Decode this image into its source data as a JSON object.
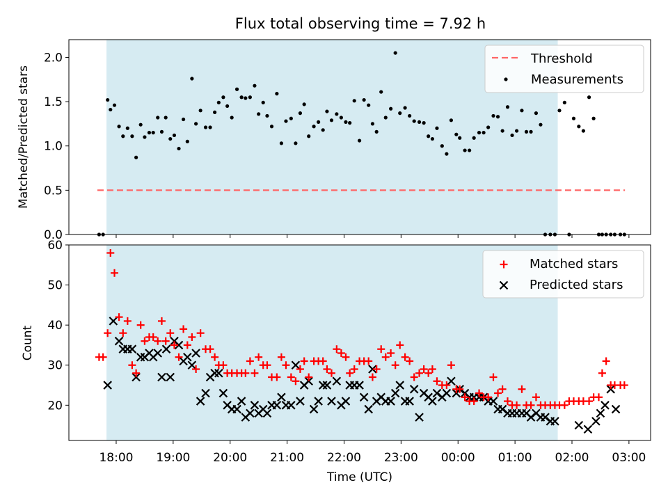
{
  "figure_title": "Flux total observing time = 7.92 h",
  "colors": {
    "observing_window": "#add8e6",
    "threshold": "#ff6666",
    "measurements": "#000000",
    "matched": "#ff0000",
    "predicted": "#000000"
  },
  "chart_data": [
    {
      "type": "scatter",
      "panel": "top",
      "title": "Flux total observing time = 7.92 h",
      "xlabel": "",
      "ylabel": "Matched/Predicted stars",
      "ylim": [
        0,
        2.2
      ],
      "yticks": [
        "0.0",
        "0.5",
        "1.0",
        "1.5",
        "2.0"
      ],
      "xticks": [
        "18:00",
        "19:00",
        "20:00",
        "21:00",
        "22:00",
        "23:00",
        "00:00",
        "01:00",
        "02:00",
        "03:00"
      ],
      "xlim_hours": [
        17.17,
        27.38
      ],
      "shaded_window_hours": [
        17.83,
        25.75
      ],
      "legend_position": "upper right",
      "threshold": {
        "name": "Threshold",
        "value": 0.5,
        "x_range_hours": [
          17.67,
          26.93
        ]
      },
      "series": [
        {
          "name": "Measurements",
          "x_hours": [
            17.7,
            17.77,
            17.85,
            17.9,
            17.97,
            18.05,
            18.12,
            18.2,
            18.28,
            18.35,
            18.43,
            18.5,
            18.58,
            18.65,
            18.73,
            18.8,
            18.87,
            18.95,
            19.02,
            19.1,
            19.18,
            19.25,
            19.33,
            19.4,
            19.48,
            19.57,
            19.65,
            19.73,
            19.8,
            19.88,
            19.95,
            20.03,
            20.12,
            20.2,
            20.27,
            20.35,
            20.43,
            20.5,
            20.58,
            20.65,
            20.73,
            20.82,
            20.9,
            20.98,
            21.07,
            21.15,
            21.23,
            21.3,
            21.38,
            21.47,
            21.55,
            21.63,
            21.7,
            21.78,
            21.87,
            21.95,
            22.03,
            22.1,
            22.18,
            22.27,
            22.35,
            22.43,
            22.5,
            22.57,
            22.65,
            22.73,
            22.82,
            22.9,
            22.98,
            23.07,
            23.15,
            23.23,
            23.32,
            23.4,
            23.48,
            23.55,
            23.63,
            23.72,
            23.8,
            23.88,
            23.97,
            24.03,
            24.12,
            24.2,
            24.28,
            24.37,
            24.45,
            24.53,
            24.62,
            24.7,
            24.78,
            24.87,
            24.95,
            25.03,
            25.12,
            25.2,
            25.28,
            25.37,
            25.45,
            25.53,
            25.62,
            25.7,
            25.78,
            25.87,
            25.95,
            26.03,
            26.12,
            26.2,
            26.3,
            26.38,
            26.47,
            26.53,
            26.6,
            26.68,
            26.75,
            26.85,
            26.92
          ],
          "values": [
            0.0,
            0.0,
            1.52,
            1.41,
            1.46,
            1.22,
            1.11,
            1.2,
            1.11,
            0.87,
            1.24,
            1.1,
            1.15,
            1.15,
            1.32,
            1.16,
            1.32,
            1.08,
            1.12,
            0.97,
            1.3,
            1.05,
            1.76,
            1.25,
            1.4,
            1.21,
            1.21,
            1.38,
            1.49,
            1.55,
            1.45,
            1.32,
            1.64,
            1.55,
            1.54,
            1.55,
            1.68,
            1.36,
            1.49,
            1.34,
            1.22,
            1.59,
            1.03,
            1.28,
            1.31,
            1.03,
            1.37,
            1.47,
            1.11,
            1.22,
            1.27,
            1.18,
            1.39,
            1.29,
            1.36,
            1.32,
            1.27,
            1.26,
            1.51,
            1.06,
            1.52,
            1.46,
            1.25,
            1.16,
            1.61,
            1.32,
            1.42,
            2.05,
            1.37,
            1.43,
            1.34,
            1.28,
            1.27,
            1.26,
            1.11,
            1.08,
            1.2,
            1.0,
            0.91,
            1.29,
            1.13,
            1.09,
            0.95,
            0.95,
            1.09,
            1.15,
            1.15,
            1.21,
            1.34,
            1.33,
            1.17,
            1.44,
            1.12,
            1.17,
            1.4,
            1.16,
            1.16,
            1.37,
            1.24,
            0.0,
            0.0,
            0.0,
            1.4,
            1.49,
            0.0,
            1.31,
            1.22,
            1.17,
            1.55,
            1.31,
            0.0,
            0.0,
            0.0,
            0.0,
            0.0,
            0.0,
            0.0
          ]
        }
      ]
    },
    {
      "type": "scatter",
      "panel": "bottom",
      "xlabel": "Time (UTC)",
      "ylabel": "Count",
      "ylim": [
        11.2,
        60
      ],
      "yticks": [
        "20",
        "30",
        "40",
        "50",
        "60"
      ],
      "xticks": [
        "18:00",
        "19:00",
        "20:00",
        "21:00",
        "22:00",
        "23:00",
        "00:00",
        "01:00",
        "02:00",
        "03:00"
      ],
      "xlim_hours": [
        17.17,
        27.38
      ],
      "shaded_window_hours": [
        17.83,
        25.75
      ],
      "legend_position": "upper right",
      "series": [
        {
          "name": "Matched stars",
          "marker": "plus",
          "x_hours": [
            17.7,
            17.77,
            17.85,
            17.9,
            17.97,
            18.05,
            18.12,
            18.2,
            18.28,
            18.35,
            18.43,
            18.5,
            18.58,
            18.65,
            18.73,
            18.8,
            18.87,
            18.95,
            19.02,
            19.1,
            19.18,
            19.25,
            19.33,
            19.4,
            19.48,
            19.57,
            19.65,
            19.73,
            19.8,
            19.88,
            19.95,
            20.03,
            20.12,
            20.2,
            20.27,
            20.35,
            20.43,
            20.5,
            20.58,
            20.65,
            20.73,
            20.82,
            20.9,
            20.98,
            21.07,
            21.15,
            21.23,
            21.3,
            21.38,
            21.47,
            21.55,
            21.63,
            21.7,
            21.78,
            21.87,
            21.95,
            22.03,
            22.1,
            22.18,
            22.27,
            22.35,
            22.43,
            22.5,
            22.57,
            22.65,
            22.73,
            22.82,
            22.9,
            22.98,
            23.07,
            23.15,
            23.23,
            23.32,
            23.4,
            23.48,
            23.55,
            23.63,
            23.72,
            23.8,
            23.88,
            23.97,
            24.03,
            24.12,
            24.2,
            24.28,
            24.37,
            24.45,
            24.53,
            24.62,
            24.7,
            24.78,
            24.87,
            24.95,
            25.03,
            25.12,
            25.2,
            25.28,
            25.37,
            25.45,
            25.53,
            25.62,
            25.7,
            25.78,
            25.87,
            25.95,
            26.03,
            26.12,
            26.2,
            26.3,
            26.38,
            26.47,
            26.53,
            26.6,
            26.68,
            26.75,
            26.85,
            26.92
          ],
          "values": [
            32,
            32,
            38,
            58,
            53,
            42,
            38,
            41,
            30,
            28,
            40,
            36,
            37,
            37,
            36,
            41,
            36,
            38,
            35,
            32,
            39,
            35,
            37,
            29,
            38,
            34,
            34,
            32,
            30,
            30,
            28,
            28,
            28,
            28,
            28,
            31,
            28,
            32,
            30,
            30,
            27,
            27,
            32,
            30,
            27,
            26,
            29,
            31,
            27,
            31,
            31,
            31,
            29,
            28,
            34,
            33,
            32,
            28,
            29,
            31,
            31,
            31,
            27,
            29,
            34,
            32,
            33,
            30,
            35,
            32,
            31,
            27,
            28,
            29,
            28,
            29,
            26,
            25,
            25,
            30,
            24,
            24,
            22,
            21,
            21,
            23,
            22,
            22,
            27,
            23,
            24,
            21,
            20,
            20,
            24,
            20,
            20,
            22,
            20,
            20,
            20,
            20,
            20,
            20,
            21,
            21,
            21,
            21,
            21,
            22,
            22,
            28,
            31,
            25,
            25,
            25,
            25
          ],
          "note": ""
        },
        {
          "name": "Predicted stars",
          "marker": "x",
          "x_hours": [
            17.85,
            17.95,
            18.05,
            18.12,
            18.2,
            18.28,
            18.35,
            18.43,
            18.5,
            18.58,
            18.65,
            18.73,
            18.8,
            18.88,
            18.95,
            19.02,
            19.1,
            19.18,
            19.25,
            19.33,
            19.4,
            19.48,
            19.57,
            19.65,
            19.73,
            19.8,
            19.88,
            19.95,
            20.03,
            20.12,
            20.2,
            20.27,
            20.35,
            20.43,
            20.5,
            20.58,
            20.65,
            20.73,
            20.82,
            20.9,
            20.98,
            21.07,
            21.15,
            21.23,
            21.3,
            21.38,
            21.47,
            21.55,
            21.63,
            21.7,
            21.78,
            21.87,
            21.95,
            22.03,
            22.1,
            22.18,
            22.27,
            22.35,
            22.43,
            22.5,
            22.57,
            22.65,
            22.73,
            22.82,
            22.9,
            22.98,
            23.07,
            23.15,
            23.23,
            23.32,
            23.4,
            23.48,
            23.55,
            23.63,
            23.72,
            23.8,
            23.88,
            23.97,
            24.03,
            24.12,
            24.2,
            24.28,
            24.37,
            24.45,
            24.53,
            24.62,
            24.7,
            24.78,
            24.87,
            24.95,
            25.03,
            25.12,
            25.2,
            25.28,
            25.37,
            25.45,
            25.53,
            25.62,
            25.7,
            26.12,
            26.28,
            26.42,
            26.5,
            26.58,
            26.68,
            26.77
          ],
          "values": [
            25,
            41,
            36,
            34,
            34,
            34,
            27,
            32,
            32,
            33,
            32,
            33,
            27,
            34,
            27,
            36,
            35,
            31,
            32,
            30,
            33,
            21,
            23,
            27,
            28,
            28,
            23,
            20,
            19,
            19,
            21,
            17,
            18,
            20,
            18,
            19,
            18,
            20,
            20,
            22,
            20,
            20,
            30,
            21,
            25,
            26,
            19,
            21,
            25,
            25,
            21,
            26,
            20,
            21,
            25,
            25,
            25,
            22,
            19,
            29,
            21,
            22,
            21,
            21,
            23,
            25,
            21,
            21,
            24,
            17,
            23,
            22,
            21,
            23,
            22,
            23,
            26,
            23,
            24,
            23,
            22,
            22,
            22,
            22,
            21,
            21,
            19,
            19,
            18,
            18,
            18,
            18,
            18,
            17,
            18,
            17,
            17,
            16,
            16,
            15,
            14,
            16,
            18,
            20,
            24,
            19
          ]
        }
      ]
    }
  ]
}
